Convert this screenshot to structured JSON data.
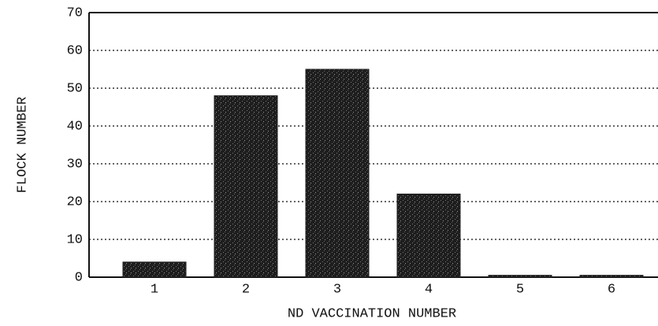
{
  "chart_data": {
    "type": "bar",
    "xlabel": "ND VACCINATION NUMBER",
    "ylabel": "FLOCK NUMBER",
    "categories": [
      "1",
      "2",
      "3",
      "4",
      "5",
      "6"
    ],
    "values": [
      4,
      48,
      55,
      22,
      0.5,
      0.5
    ],
    "color": "#1e1e1e",
    "ylim": [
      0,
      70
    ],
    "yticks": [
      0,
      10,
      20,
      30,
      40,
      50,
      60,
      70
    ],
    "grid": true
  }
}
